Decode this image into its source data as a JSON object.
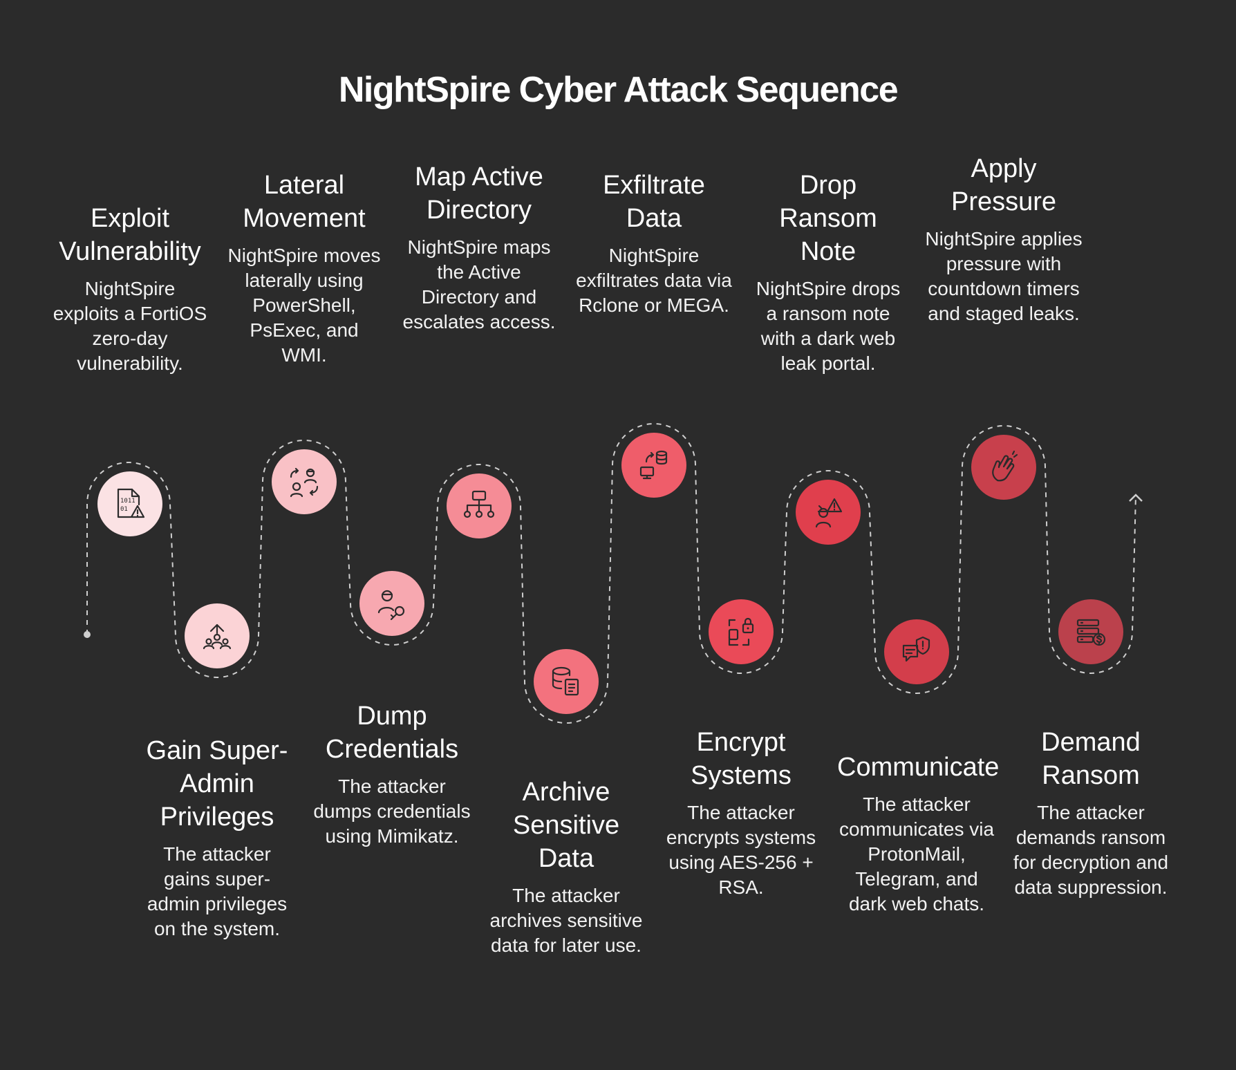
{
  "title": "NightSpire Cyber Attack Sequence",
  "steps": [
    {
      "title": "Exploit Vulnerability",
      "desc": "NightSpire exploits a FortiOS zero-day vulnerability.",
      "icon": "file-warning-icon",
      "color": "#fbe2e4"
    },
    {
      "title": "Gain Super-Admin Privileges",
      "desc": "The attacker gains super-admin privileges on the system.",
      "icon": "user-group-up-icon",
      "color": "#fbd3d6"
    },
    {
      "title": "Lateral Movement",
      "desc": "NightSpire moves laterally using PowerShell, PsExec, and WMI.",
      "icon": "user-swap-icon",
      "color": "#f9c1c6"
    },
    {
      "title": "Dump Credentials",
      "desc": "The attacker dumps credentials using Mimikatz.",
      "icon": "user-key-icon",
      "color": "#f7a8b0"
    },
    {
      "title": "Map Active Directory",
      "desc": "NightSpire maps the Active Directory and escalates access.",
      "icon": "hierarchy-icon",
      "color": "#f58c96"
    },
    {
      "title": "Archive Sensitive Data",
      "desc": "The attacker archives sensitive data for later use.",
      "icon": "database-file-icon",
      "color": "#f3727e"
    },
    {
      "title": "Exfiltrate Data",
      "desc": "NightSpire exfiltrates data via Rclone or MEGA.",
      "icon": "data-transfer-icon",
      "color": "#ef5d6a"
    },
    {
      "title": "Encrypt Systems",
      "desc": "The attacker encrypts systems using AES-256 + RSA.",
      "icon": "file-lock-icon",
      "color": "#ea4a58"
    },
    {
      "title": "Drop Ransom Note",
      "desc": "NightSpire drops a ransom note with a dark web leak portal.",
      "icon": "hacker-warning-icon",
      "color": "#e03f4d"
    },
    {
      "title": "Communicate",
      "desc": "The attacker communicates via ProtonMail, Telegram, and dark web chats.",
      "icon": "chat-shield-icon",
      "color": "#d33e4b"
    },
    {
      "title": "Apply Pressure",
      "desc": "NightSpire applies pressure with countdown timers and staged leaks.",
      "icon": "hand-pressure-icon",
      "color": "#c8404c"
    },
    {
      "title": "Demand Ransom",
      "desc": "The attacker demands ransom for decryption and data suppression.",
      "icon": "server-dollar-icon",
      "color": "#bb414c"
    }
  ]
}
